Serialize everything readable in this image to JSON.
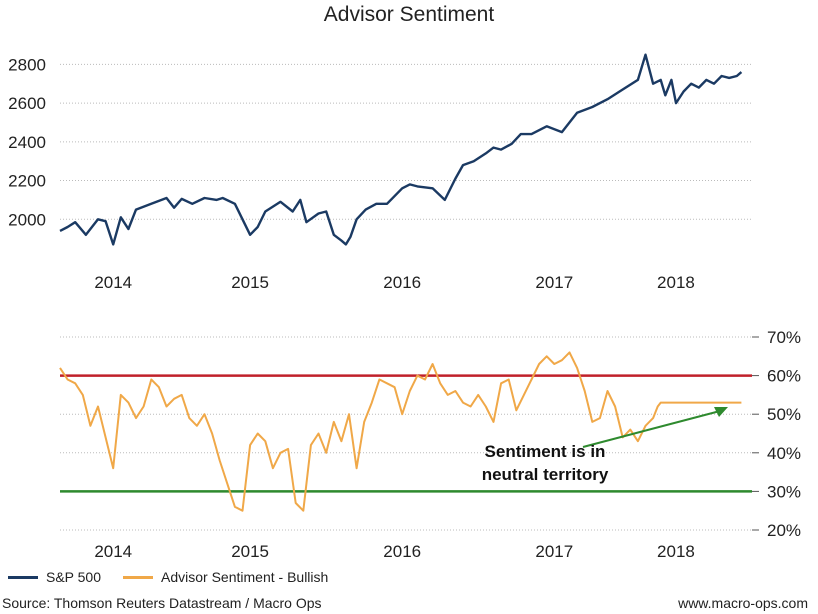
{
  "title": "Advisor Sentiment",
  "annotation": {
    "line1": "Sentiment is in",
    "line2": "neutral territory"
  },
  "legend": [
    {
      "name": "S&P 500",
      "color": "#1b3a63"
    },
    {
      "name": "Advisor Sentiment - Bullish",
      "color": "#f0a848"
    }
  ],
  "footer": {
    "source": "Source: Thomson Reuters Datastream / Macro Ops",
    "website": "www.macro-ops.com"
  },
  "colors": {
    "sp500": "#1b3a63",
    "sentiment": "#f0a848",
    "upper_ref": "#c0202a",
    "lower_ref": "#2e8a2e",
    "arrow": "#2e8a2e",
    "grid": "#bbbbbb"
  },
  "chart_data": [
    {
      "type": "line",
      "ylabel": "",
      "xlabel": "",
      "ylim": [
        1800,
        2900
      ],
      "xlim": [
        2013.75,
        2018.3
      ],
      "y_ticks": [
        2000,
        2200,
        2400,
        2600,
        2800
      ],
      "y_tick_labels": [
        "2000",
        "2200",
        "2400",
        "2600",
        "2800"
      ],
      "x_ticks": [
        2014.1,
        2015.0,
        2016.0,
        2017.0,
        2017.8
      ],
      "x_tick_labels": [
        "2014",
        "2015",
        "2016",
        "2017",
        "2018"
      ],
      "grid": true,
      "series": [
        {
          "name": "S&P 500",
          "x": [
            2013.75,
            2013.8,
            2013.85,
            2013.92,
            2014.0,
            2014.05,
            2014.1,
            2014.15,
            2014.2,
            2014.25,
            2014.35,
            2014.45,
            2014.5,
            2014.55,
            2014.62,
            2014.7,
            2014.78,
            2014.82,
            2014.9,
            2015.0,
            2015.05,
            2015.1,
            2015.2,
            2015.28,
            2015.33,
            2015.37,
            2015.45,
            2015.5,
            2015.55,
            2015.6,
            2015.63,
            2015.66,
            2015.7,
            2015.76,
            2015.83,
            2015.9,
            2016.0,
            2016.05,
            2016.1,
            2016.2,
            2016.28,
            2016.35,
            2016.4,
            2016.47,
            2016.55,
            2016.6,
            2016.65,
            2016.72,
            2016.78,
            2016.85,
            2016.95,
            2017.05,
            2017.15,
            2017.25,
            2017.35,
            2017.45,
            2017.55,
            2017.6,
            2017.65,
            2017.7,
            2017.73,
            2017.77,
            2017.8,
            2017.85,
            2017.9,
            2017.95,
            2018.0,
            2018.05,
            2018.1,
            2018.15,
            2018.2,
            2018.23
          ],
          "values": [
            1940,
            1960,
            1985,
            1920,
            2000,
            1990,
            1870,
            2010,
            1950,
            2050,
            2080,
            2110,
            2060,
            2105,
            2080,
            2110,
            2100,
            2110,
            2080,
            1920,
            1960,
            2040,
            2090,
            2040,
            2100,
            1985,
            2030,
            2040,
            1920,
            1890,
            1870,
            1910,
            2000,
            2050,
            2080,
            2080,
            2160,
            2180,
            2170,
            2160,
            2100,
            2210,
            2280,
            2300,
            2340,
            2370,
            2360,
            2390,
            2440,
            2440,
            2480,
            2450,
            2550,
            2580,
            2620,
            2670,
            2720,
            2850,
            2700,
            2720,
            2640,
            2720,
            2600,
            2660,
            2700,
            2680,
            2720,
            2700,
            2740,
            2730,
            2740,
            2760
          ]
        }
      ]
    },
    {
      "type": "line",
      "ylabel": "",
      "xlabel": "",
      "ylim": [
        20,
        70
      ],
      "xlim": [
        2013.75,
        2018.3
      ],
      "y_ticks": [
        20,
        30,
        40,
        50,
        60,
        70
      ],
      "y_tick_labels": [
        "20%",
        "30%",
        "40%",
        "50%",
        "60%",
        "70%"
      ],
      "x_ticks": [
        2014.1,
        2015.0,
        2016.0,
        2017.0,
        2017.8
      ],
      "x_tick_labels": [
        "2014",
        "2015",
        "2016",
        "2017",
        "2018"
      ],
      "reference_lines": [
        {
          "y": 60,
          "color": "#c0202a"
        },
        {
          "y": 30,
          "color": "#2e8a2e"
        }
      ],
      "grid": true,
      "series": [
        {
          "name": "Advisor Sentiment - Bullish",
          "x": [
            2013.75,
            2013.8,
            2013.85,
            2013.9,
            2013.95,
            2014.0,
            2014.05,
            2014.1,
            2014.15,
            2014.2,
            2014.25,
            2014.3,
            2014.35,
            2014.4,
            2014.45,
            2014.5,
            2014.55,
            2014.6,
            2014.65,
            2014.7,
            2014.75,
            2014.8,
            2014.85,
            2014.9,
            2014.95,
            2015.0,
            2015.05,
            2015.1,
            2015.15,
            2015.2,
            2015.25,
            2015.3,
            2015.35,
            2015.4,
            2015.45,
            2015.5,
            2015.55,
            2015.6,
            2015.65,
            2015.7,
            2015.75,
            2015.8,
            2015.85,
            2015.9,
            2015.95,
            2016.0,
            2016.05,
            2016.1,
            2016.15,
            2016.2,
            2016.25,
            2016.3,
            2016.35,
            2016.4,
            2016.45,
            2016.5,
            2016.55,
            2016.6,
            2016.65,
            2016.7,
            2016.75,
            2016.8,
            2016.85,
            2016.9,
            2016.95,
            2017.0,
            2017.05,
            2017.1,
            2017.15,
            2017.2,
            2017.25,
            2017.3,
            2017.35,
            2017.4,
            2017.45,
            2017.5,
            2017.55,
            2017.6,
            2017.65,
            2017.68,
            2017.7,
            2017.75,
            2017.8,
            2017.85,
            2017.9,
            2017.95,
            2018.0,
            2018.05,
            2018.1,
            2018.15,
            2018.2,
            2018.23
          ],
          "values": [
            62,
            59,
            58,
            55,
            47,
            52,
            44,
            36,
            55,
            53,
            49,
            52,
            59,
            57,
            52,
            54,
            55,
            49,
            47,
            50,
            45,
            38,
            32,
            26,
            25,
            42,
            45,
            43,
            36,
            40,
            41,
            27,
            25,
            42,
            45,
            40,
            48,
            43,
            50,
            36,
            48,
            53,
            59,
            58,
            57,
            50,
            56,
            60,
            59,
            63,
            58,
            55,
            56,
            53,
            52,
            55,
            52,
            48,
            58,
            59,
            51,
            55,
            59,
            63,
            65,
            63,
            64,
            66,
            62,
            56,
            48,
            49,
            56,
            52,
            44,
            46,
            43,
            47,
            49,
            52,
            53,
            53,
            53,
            53,
            53,
            53,
            53,
            53,
            53,
            53,
            53,
            53
          ]
        }
      ]
    }
  ]
}
